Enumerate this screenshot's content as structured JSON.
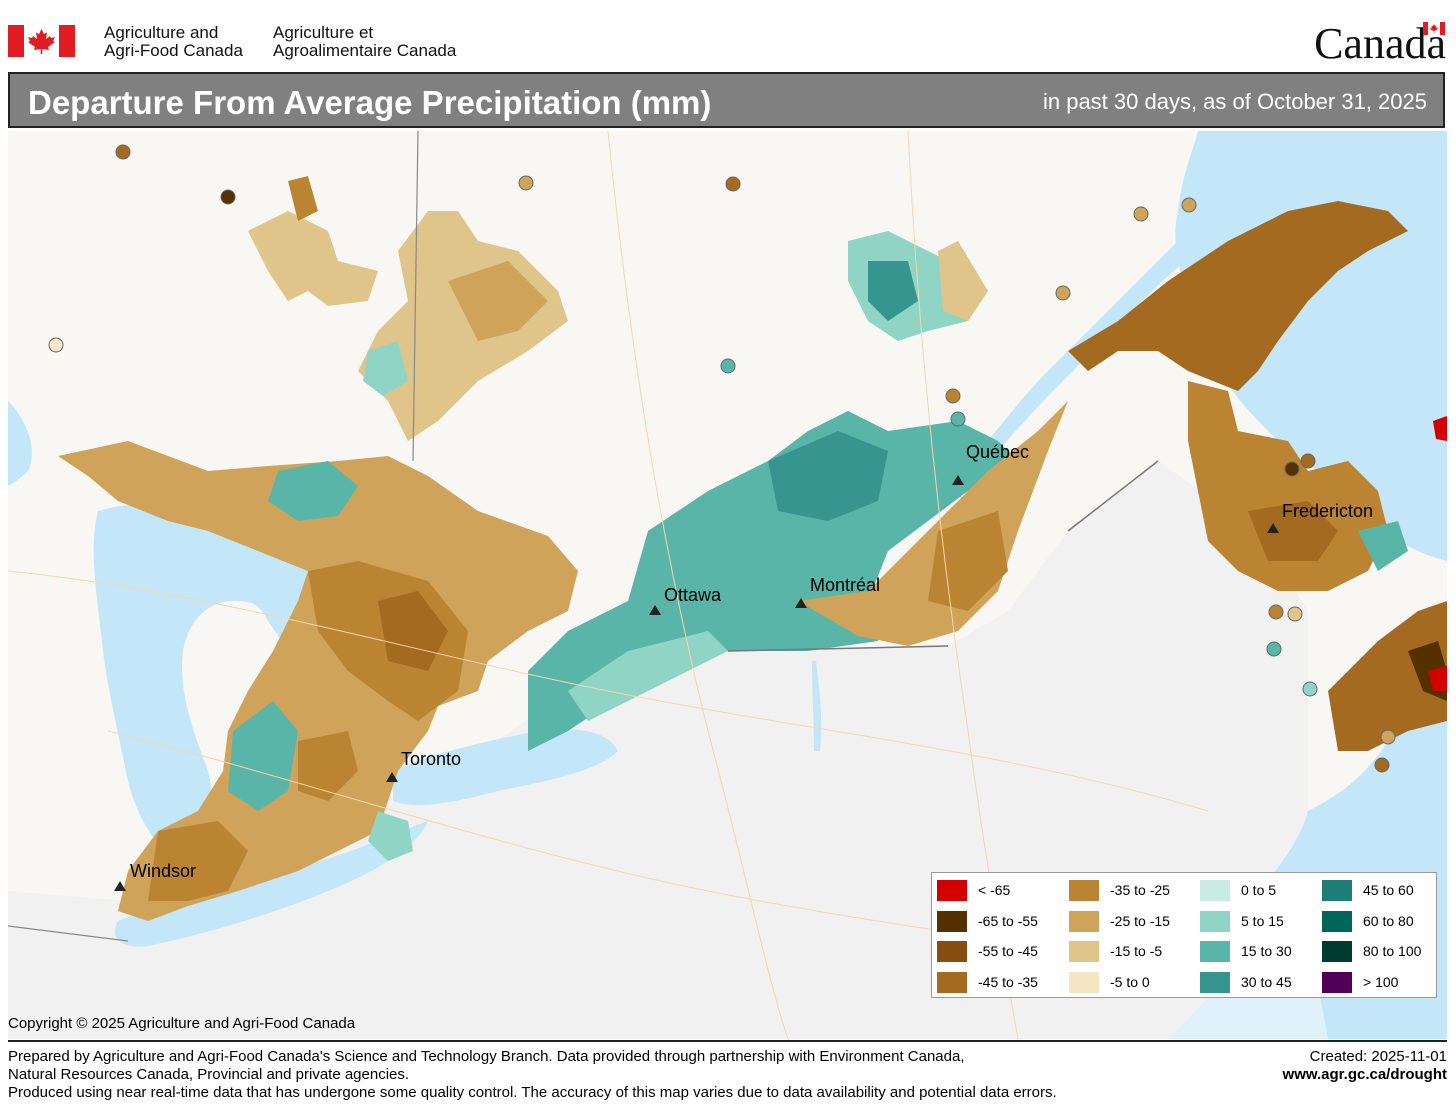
{
  "header": {
    "dept_en_line1": "Agriculture and",
    "dept_en_line2": "Agri-Food Canada",
    "dept_fr_line1": "Agriculture et",
    "dept_fr_line2": "Agroalimentaire Canada",
    "wordmark": "Canada"
  },
  "title": {
    "main": "Departure From Average Precipitation (mm)",
    "period": "in past 30 days, as of October 31, 2025"
  },
  "cities": {
    "quebec": "Québec",
    "fredericton": "Fredericton",
    "ottawa": "Ottawa",
    "montreal": "Montréal",
    "toronto": "Toronto",
    "windsor": "Windsor"
  },
  "legend": [
    {
      "label": "< -65",
      "color": "#d40000"
    },
    {
      "label": "-65 to -55",
      "color": "#553000"
    },
    {
      "label": "-55 to -45",
      "color": "#864e0f"
    },
    {
      "label": "-45 to -35",
      "color": "#a46b20"
    },
    {
      "label": "-35 to -25",
      "color": "#bb8432"
    },
    {
      "label": "-25 to -15",
      "color": "#cfa35a"
    },
    {
      "label": "-15 to -5",
      "color": "#e0c58a"
    },
    {
      "label": "-5 to 0",
      "color": "#f4e6c5"
    },
    {
      "label": "0 to 5",
      "color": "#c9ebe3"
    },
    {
      "label": "5 to 15",
      "color": "#8fd4c5"
    },
    {
      "label": "15 to 30",
      "color": "#5ab5a9"
    },
    {
      "label": "30 to 45",
      "color": "#36958f"
    },
    {
      "label": "45 to 60",
      "color": "#1d7e78"
    },
    {
      "label": "60 to 80",
      "color": "#006658"
    },
    {
      "label": "80 to 100",
      "color": "#003b32"
    },
    {
      "label": "> 100",
      "color": "#520055"
    }
  ],
  "copyright": "Copyright © 2025 Agriculture and Agri-Food Canada",
  "footer": {
    "line1": "Prepared by Agriculture and Agri-Food Canada's Science and Technology Branch. Data provided through partnership with Environment Canada,",
    "line2": "Natural Resources Canada, Provincial and private agencies.",
    "line3": "Produced using near real-time data that has undergone some quality control. The accuracy of this map varies due to data availability and potential data errors.",
    "created": "Created: 2025-11-01",
    "url": "www.agr.gc.ca/drought"
  },
  "colors": {
    "water": "#c3e6f8",
    "land": "#f8f7f3",
    "land_us": "#f2f2f2",
    "title_bar": "#808080"
  }
}
